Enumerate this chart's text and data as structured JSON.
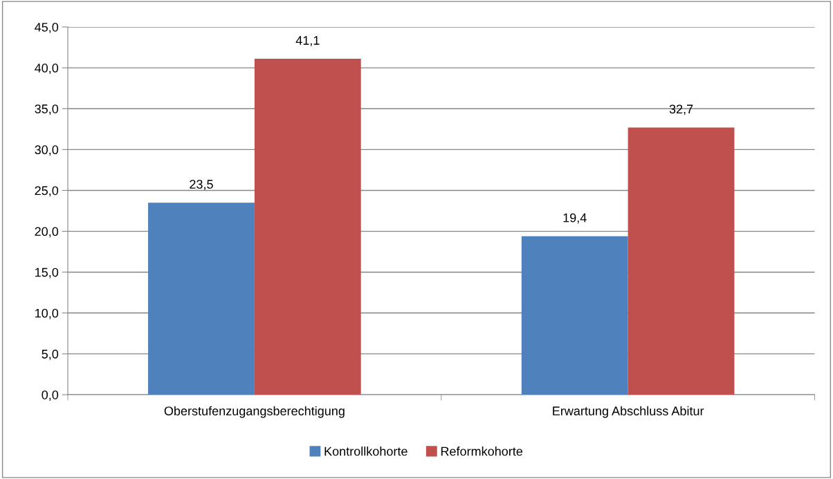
{
  "chart_data": {
    "type": "bar",
    "categories": [
      "Oberstufenzugangsberechtigung",
      "Erwartung Abschluss Abitur"
    ],
    "series": [
      {
        "name": "Kontrollkohorte",
        "color": "#4f81bd",
        "values": [
          23.5,
          19.4
        ],
        "value_labels": [
          "23,5",
          "19,4"
        ]
      },
      {
        "name": "Reformkohorte",
        "color": "#c0504d",
        "values": [
          41.1,
          32.7
        ],
        "value_labels": [
          "41,1",
          "32,7"
        ]
      }
    ],
    "ylim": [
      0,
      45
    ],
    "yticks": [
      {
        "value": 0,
        "label": "0,0"
      },
      {
        "value": 5,
        "label": "5,0"
      },
      {
        "value": 10,
        "label": "10,0"
      },
      {
        "value": 15,
        "label": "15,0"
      },
      {
        "value": 20,
        "label": "20,0"
      },
      {
        "value": 25,
        "label": "25,0"
      },
      {
        "value": 30,
        "label": "30,0"
      },
      {
        "value": 35,
        "label": "35,0"
      },
      {
        "value": 40,
        "label": "40,0"
      },
      {
        "value": 45,
        "label": "45,0"
      }
    ],
    "grid": "y",
    "legend": "bottom"
  }
}
